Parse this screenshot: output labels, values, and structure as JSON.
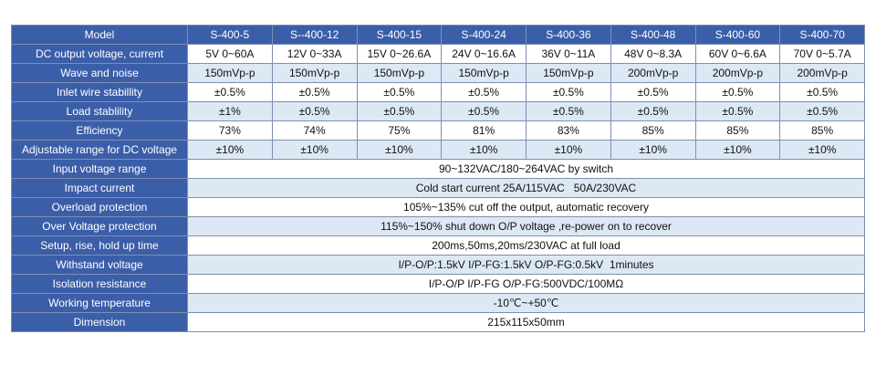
{
  "table": {
    "header": [
      "Model",
      "S-400-5",
      "S--400-12",
      "S-400-15",
      "S-400-24",
      "S-400-36",
      "S-400-48",
      "S-400-60",
      "S-400-70"
    ],
    "rows": [
      [
        "DC output voltage, current",
        "5V 0~60A",
        "12V 0~33A",
        "15V 0~26.6A",
        "24V 0~16.6A",
        "36V 0~11A",
        "48V 0~8.3A",
        "60V 0~6.6A",
        "70V 0~5.7A"
      ],
      [
        "Wave and noise",
        "150mVp-p",
        "150mVp-p",
        "150mVp-p",
        "150mVp-p",
        "150mVp-p",
        "200mVp-p",
        "200mVp-p",
        "200mVp-p"
      ],
      [
        "Inlet wire stabillity",
        "±0.5%",
        "±0.5%",
        "±0.5%",
        "±0.5%",
        "±0.5%",
        "±0.5%",
        "±0.5%",
        "±0.5%"
      ],
      [
        "Load stablility",
        "±1%",
        "±0.5%",
        "±0.5%",
        "±0.5%",
        "±0.5%",
        "±0.5%",
        "±0.5%",
        "±0.5%"
      ],
      [
        "Efficiency",
        "73%",
        "74%",
        "75%",
        "81%",
        "83%",
        "85%",
        "85%",
        "85%"
      ],
      [
        "Adjustable range for DC voltage",
        "±10%",
        "±10%",
        "±10%",
        "±10%",
        "±10%",
        "±10%",
        "±10%",
        "±10%"
      ],
      [
        "Input voltage range",
        "90~132VAC/180~264VAC by switch"
      ],
      [
        "Impact current",
        "Cold start current 25A/115VAC   50A/230VAC"
      ],
      [
        "Overload protection",
        "105%~135% cut off the output, automatic recovery"
      ],
      [
        "Over Voltage protection",
        "115%~150% shut down O/P voltage ,re-power on to recover"
      ],
      [
        "Setup, rise, hold up time",
        "200ms,50ms,20ms/230VAC at full load"
      ],
      [
        "Withstand voltage",
        "I/P-O/P:1.5kV I/P-FG:1.5kV O/P-FG:0.5kV  1minutes"
      ],
      [
        "Isolation resistance",
        "I/P-O/P I/P-FG O/P-FG:500VDC/100MΩ"
      ],
      [
        "Working temperature",
        "-10℃~+50℃"
      ],
      [
        "Dimension",
        "215x115x50mm"
      ]
    ]
  }
}
